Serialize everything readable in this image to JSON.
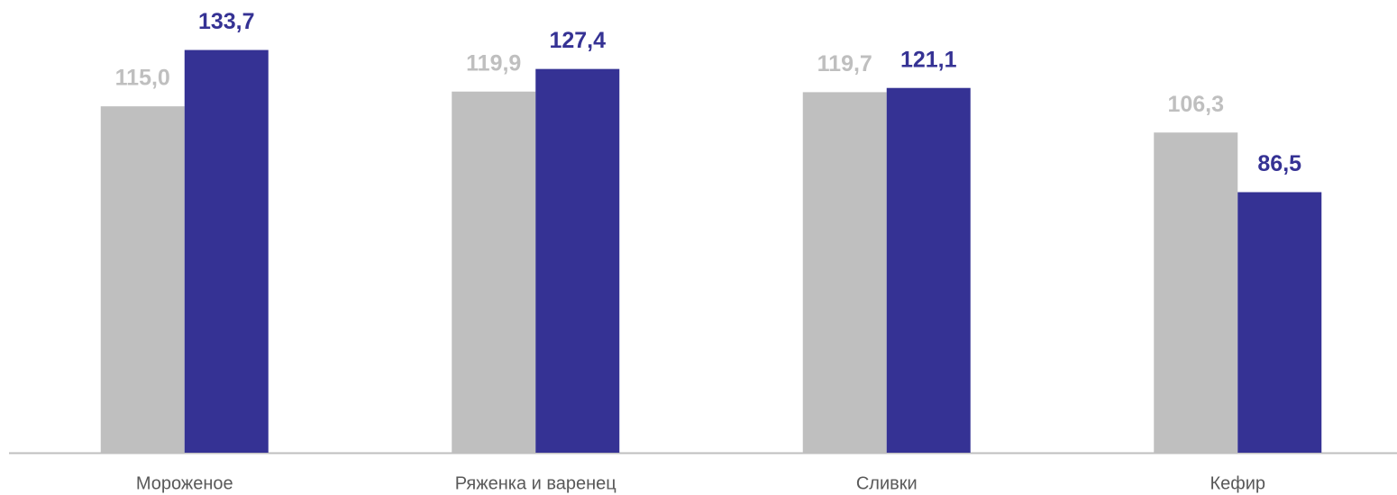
{
  "chart_data": {
    "type": "bar",
    "categories": [
      "Мороженое",
      "Ряженка и варенец",
      "Сливки",
      "Кефир"
    ],
    "series": [
      {
        "color": "#bfbfbf",
        "values": [
          115.0,
          119.9,
          119.7,
          106.3
        ],
        "value_labels": [
          "115,0",
          "119,9",
          "119,7",
          "106,3"
        ]
      },
      {
        "color": "#353294",
        "values": [
          133.7,
          127.4,
          121.1,
          86.5
        ],
        "value_labels": [
          "133,7",
          "127,4",
          "121,1",
          "86,5"
        ]
      }
    ],
    "ylim": [
      0,
      150
    ],
    "grid": false
  }
}
